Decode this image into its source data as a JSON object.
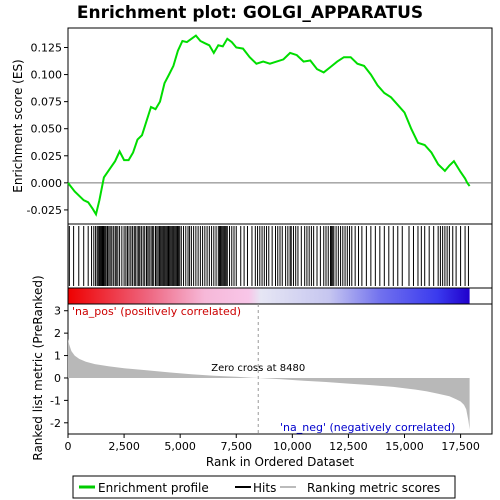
{
  "chart_data": {
    "type": "line",
    "title": "Enrichment plot: GOLGI_APPARATUS",
    "xlabel": "Rank in Ordered Dataset",
    "ylabel_top": "Enrichment score (ES)",
    "ylabel_bottom": "Ranked list metric (PreRanked)",
    "x_range": [
      0,
      18900
    ],
    "top_panel": {
      "ylim": [
        -0.038,
        0.143
      ],
      "yticks": [
        "-0.025",
        "0.000",
        "0.025",
        "0.050",
        "0.075",
        "0.100",
        "0.125"
      ],
      "ytick_values": [
        -0.025,
        0.0,
        0.025,
        0.05,
        0.075,
        0.1,
        0.125
      ],
      "series_name": "Enrichment profile",
      "es_curve": {
        "x": [
          0,
          300,
          700,
          900,
          1100,
          1250,
          1400,
          1600,
          1900,
          2100,
          2300,
          2500,
          2700,
          2900,
          3100,
          3300,
          3500,
          3700,
          3900,
          4100,
          4300,
          4500,
          4700,
          4900,
          5100,
          5300,
          5500,
          5700,
          5900,
          6100,
          6300,
          6500,
          6700,
          6900,
          7100,
          7300,
          7500,
          7800,
          8100,
          8400,
          8700,
          9000,
          9300,
          9600,
          9900,
          10200,
          10500,
          10800,
          11100,
          11400,
          11700,
          12000,
          12300,
          12600,
          12900,
          13200,
          13500,
          13800,
          14100,
          14400,
          14700,
          15000,
          15300,
          15600,
          15900,
          16200,
          16500,
          16800,
          17000,
          17200,
          17500,
          17700,
          17800,
          17900
        ],
        "y": [
          0.0,
          -0.008,
          -0.016,
          -0.018,
          -0.024,
          -0.029,
          -0.016,
          0.005,
          0.014,
          0.02,
          0.029,
          0.021,
          0.021,
          0.028,
          0.04,
          0.044,
          0.057,
          0.07,
          0.068,
          0.075,
          0.092,
          0.1,
          0.108,
          0.122,
          0.131,
          0.13,
          0.133,
          0.136,
          0.131,
          0.129,
          0.127,
          0.12,
          0.127,
          0.126,
          0.133,
          0.13,
          0.125,
          0.124,
          0.116,
          0.11,
          0.112,
          0.11,
          0.112,
          0.114,
          0.12,
          0.118,
          0.112,
          0.113,
          0.105,
          0.102,
          0.107,
          0.112,
          0.116,
          0.116,
          0.11,
          0.108,
          0.1,
          0.09,
          0.083,
          0.079,
          0.072,
          0.065,
          0.05,
          0.037,
          0.035,
          0.028,
          0.017,
          0.011,
          0.016,
          0.02,
          0.01,
          0.004,
          0.0,
          -0.003
        ]
      }
    },
    "hits_panel": {
      "series_name": "Hits",
      "hit_positions": [
        60,
        250,
        480,
        700,
        900,
        1050,
        1150,
        1230,
        1300,
        1350,
        1400,
        1440,
        1480,
        1520,
        1560,
        1600,
        1650,
        1700,
        1760,
        1820,
        1880,
        1950,
        2020,
        2100,
        2150,
        2220,
        2300,
        2400,
        2500,
        2580,
        2650,
        2720,
        2800,
        2870,
        2950,
        3000,
        3080,
        3150,
        3200,
        3270,
        3350,
        3420,
        3500,
        3560,
        3620,
        3700,
        3760,
        3820,
        3900,
        3960,
        4020,
        4080,
        4130,
        4180,
        4230,
        4280,
        4330,
        4380,
        4430,
        4480,
        4530,
        4580,
        4630,
        4680,
        4730,
        4780,
        4830,
        4880,
        4930,
        4980,
        5050,
        5150,
        5250,
        5350,
        5420,
        5500,
        5600,
        5700,
        5800,
        5900,
        6000,
        6100,
        6200,
        6300,
        6400,
        6500,
        6600,
        6700,
        6750,
        6800,
        6850,
        6900,
        6950,
        7000,
        7050,
        7100,
        7200,
        7300,
        7400,
        7500,
        7700,
        7850,
        8000,
        8200,
        8350,
        8450,
        8550,
        8650,
        8750,
        8850,
        8950,
        9100,
        9250,
        9350,
        9450,
        9550,
        9700,
        9800,
        9900,
        9950,
        10050,
        10150,
        10250,
        10400,
        10550,
        10650,
        10750,
        10850,
        10950,
        11100,
        11250,
        11400,
        11500,
        11600,
        11700,
        11750,
        11800,
        11850,
        11950,
        12050,
        12150,
        12250,
        12350,
        12450,
        12550,
        12650,
        12800,
        12950,
        13100,
        13300,
        13500,
        13700,
        13900,
        14100,
        14300,
        14500,
        14700,
        14900,
        15200,
        15400,
        15600,
        15750,
        15900,
        16100,
        16300,
        16500,
        16600,
        16700,
        16800,
        16900,
        17000,
        17150,
        17300,
        17500,
        17700,
        17850
      ]
    },
    "metric_panel": {
      "ylim": [
        -2.5,
        3.3
      ],
      "yticks": [
        "-2",
        "-1",
        "0",
        "1",
        "2",
        "3"
      ],
      "ytick_values": [
        -2,
        -1,
        0,
        1,
        2,
        3
      ],
      "series_name": "Ranking metric scores",
      "metric_curve": {
        "x": [
          0,
          50,
          150,
          300,
          500,
          800,
          1200,
          1800,
          2500,
          3500,
          4500,
          5500,
          6500,
          7500,
          8480,
          9500,
          10500,
          11500,
          12500,
          13500,
          14500,
          15500,
          16000,
          16500,
          17000,
          17300,
          17500,
          17650,
          17750,
          17850,
          17900
        ],
        "y": [
          1.75,
          1.5,
          1.2,
          1.0,
          0.85,
          0.72,
          0.62,
          0.52,
          0.43,
          0.34,
          0.25,
          0.17,
          0.1,
          0.05,
          0.0,
          -0.06,
          -0.12,
          -0.18,
          -0.25,
          -0.32,
          -0.4,
          -0.52,
          -0.6,
          -0.7,
          -0.82,
          -0.95,
          -1.05,
          -1.2,
          -1.4,
          -1.9,
          -2.3
        ]
      },
      "zero_cross_label": "Zero cross at 8480",
      "zero_cross_x": 8480,
      "pos_label": "'na_pos' (positively correlated)",
      "neg_label": "'na_neg' (negatively correlated)"
    },
    "xticks": [
      "0",
      "2,500",
      "5,000",
      "7,500",
      "10,000",
      "12,500",
      "15,000",
      "17,500"
    ],
    "xtick_values": [
      0,
      2500,
      5000,
      7500,
      10000,
      12500,
      15000,
      17500
    ],
    "legend": {
      "placement": "bottom",
      "items": [
        {
          "label": "Enrichment profile",
          "color": "#00cc00"
        },
        {
          "label": "Hits",
          "color": "#000000"
        },
        {
          "label": "Ranking metric scores",
          "color": "#bbbbbb"
        }
      ]
    },
    "colors": {
      "es_line": "#00dd00",
      "metric_fill": "#b8b8b8",
      "pos_label": "#cc0000",
      "neg_label": "#0000cc",
      "zero_line": "#999999"
    }
  }
}
